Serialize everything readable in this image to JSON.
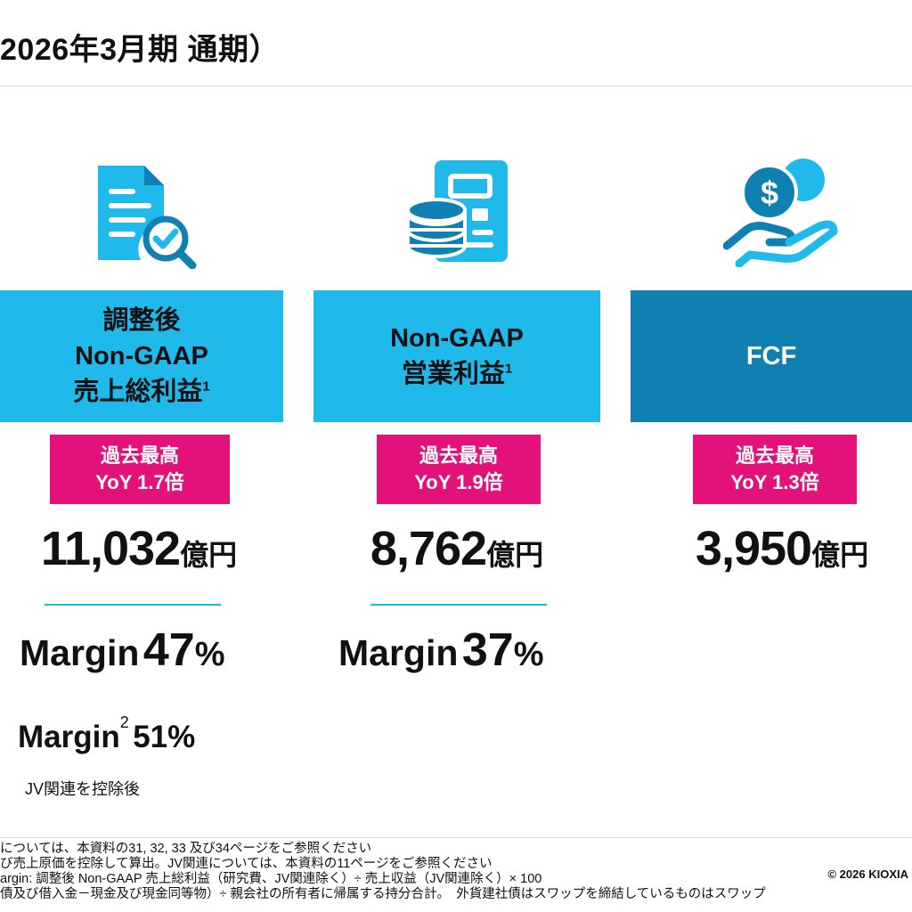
{
  "title": "2026年3月期 通期）",
  "colors": {
    "light_blue": "#1fb9ec",
    "dark_blue": "#0f80b1",
    "magenta": "#e2127a"
  },
  "cards": [
    {
      "icon": "document-search-icon",
      "header_lines": [
        "調整後",
        "Non-GAAP",
        "売上総利益"
      ],
      "header_sup": "1",
      "badge_line1": "過去最高",
      "badge_line2": "YoY 1.7倍",
      "value": "11,032",
      "unit": "億円",
      "margin_label": "Margin",
      "margin_value": "47",
      "margin_symbol": "%"
    },
    {
      "icon": "database-document-icon",
      "header_lines": [
        "Non-GAAP",
        "営業利益"
      ],
      "header_sup": "1",
      "badge_line1": "過去最高",
      "badge_line2": "YoY 1.9倍",
      "value": "8,762",
      "unit": "億円",
      "margin_label": "Margin",
      "margin_value": "37",
      "margin_symbol": "%"
    },
    {
      "icon": "money-hand-icon",
      "header_lines": [
        "FCF"
      ],
      "badge_line1": "過去最高",
      "badge_line2": "YoY 1.3倍",
      "value": "3,950",
      "unit": "億円"
    }
  ],
  "margin2": {
    "label": "Margin",
    "sup": "2",
    "value": "51%",
    "note": "JV関連を控除後"
  },
  "footnotes": [
    "については、本資料の31, 32, 33 及び34ページをご参照ください",
    "び売上原価を控除して算出。JV関連については、本資料の11ページをご参照ください",
    "argin: 調整後 Non-GAAP 売上総利益（研究費、JV関連除く）÷ 売上収益（JV関連除く）× 100",
    "債及び借入金－現金及び現金同等物）÷ 親会社の所有者に帰属する持分合計。　外貨建社債はスワップを締結しているものはスワップ"
  ],
  "copyright": "© 2026 KIOXIA"
}
